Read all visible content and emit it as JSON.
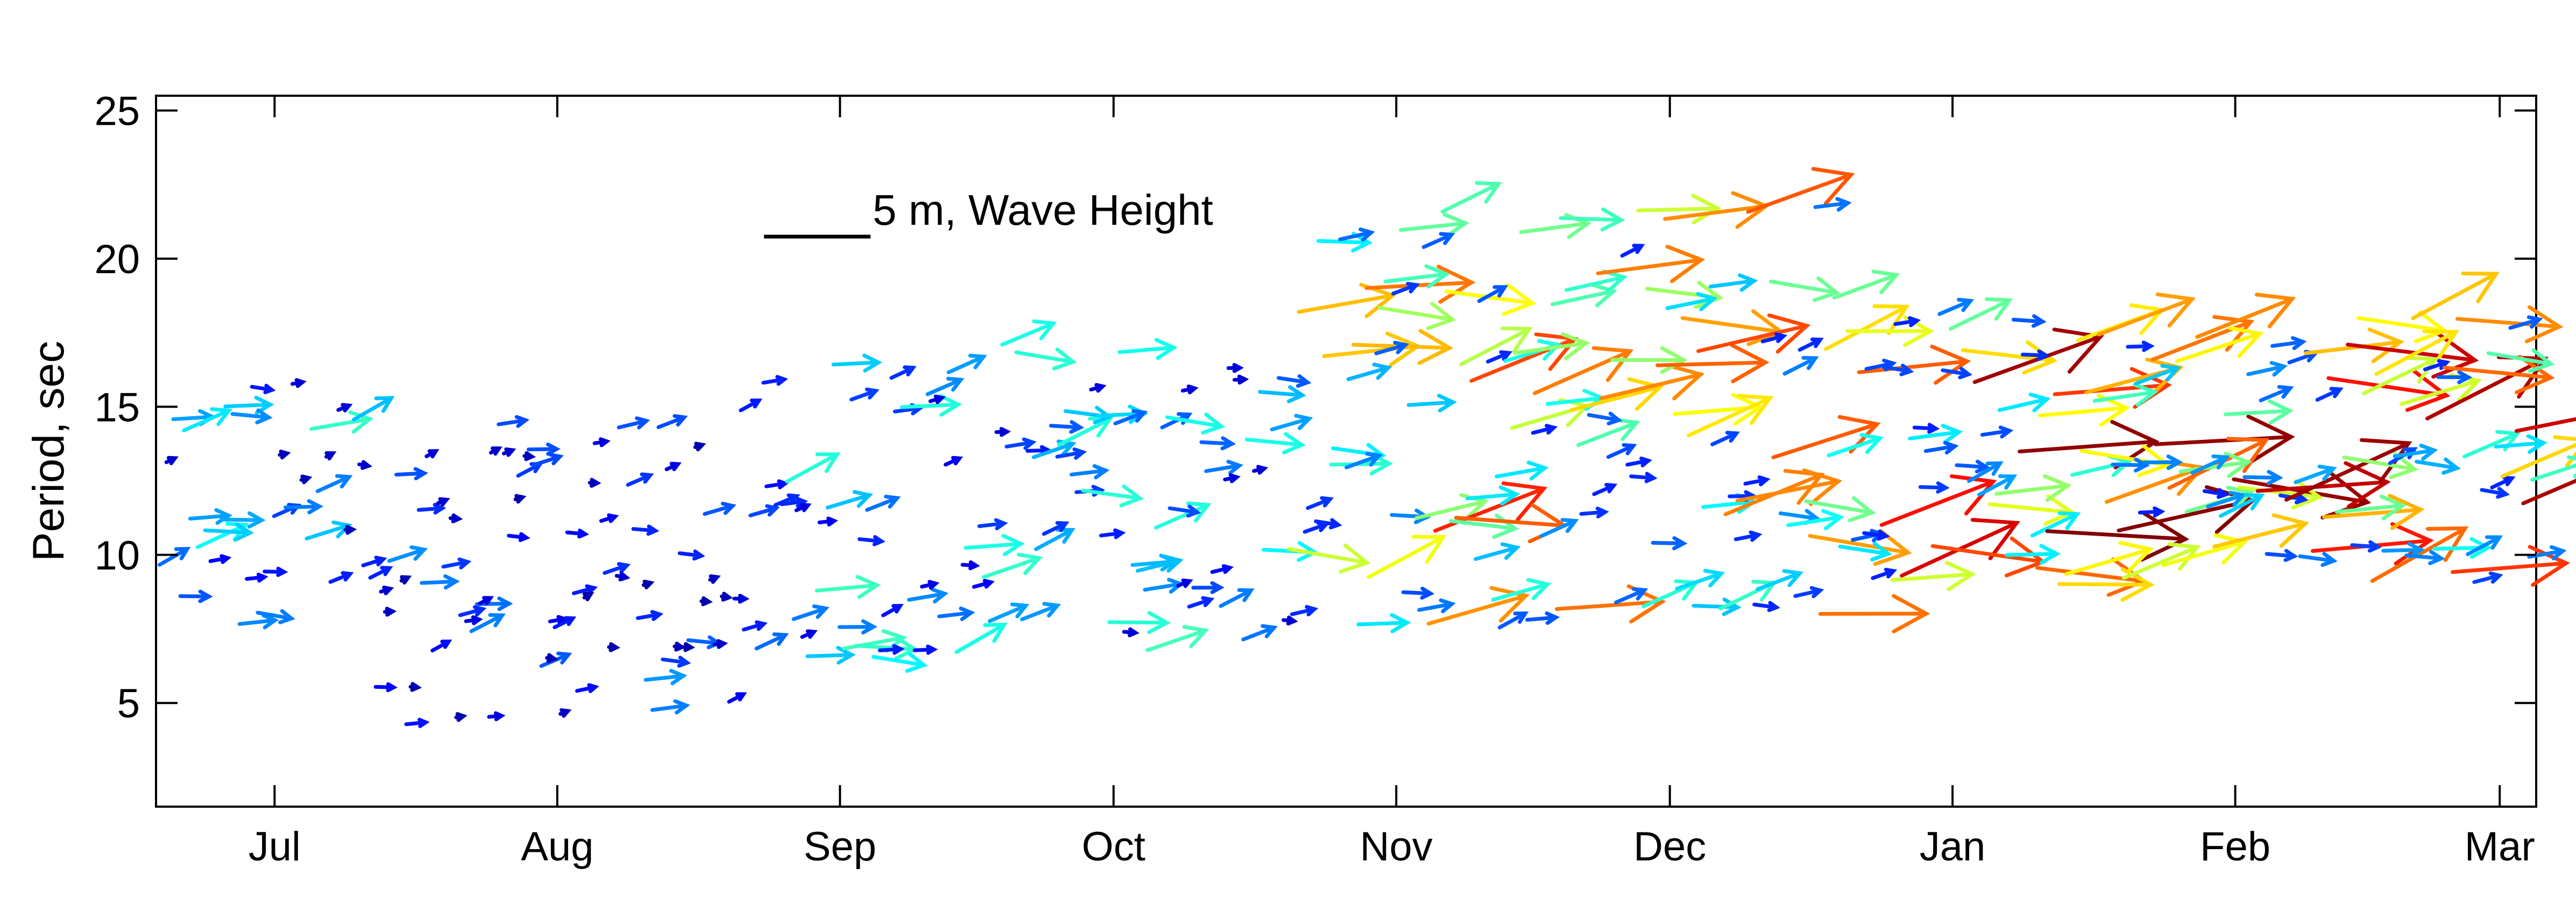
{
  "chart_data": {
    "type": "quiver",
    "xlabel": "",
    "ylabel": "Period, sec",
    "ylim": [
      1.5,
      25.5
    ],
    "yticks": [
      5,
      10,
      15,
      20,
      25
    ],
    "ytick_labels": [
      "5",
      "10",
      "15",
      "20",
      "25"
    ],
    "xlim": [
      "2011-06-18",
      "2012-03-05"
    ],
    "xticks": [
      "2011-07-01",
      "2011-08-01",
      "2011-09-01",
      "2011-10-01",
      "2011-11-01",
      "2011-12-01",
      "2012-01-01",
      "2012-02-01",
      "2012-03-01"
    ],
    "xtick_labels": [
      "Jul",
      "Aug",
      "Sep",
      "Oct",
      "Nov",
      "Dec",
      "Jan",
      "Feb",
      "Mar"
    ],
    "grid": false,
    "legend": {
      "label": "5 m, Wave Height",
      "reference_height_m": 5,
      "placement": "top-left-center"
    },
    "colormap": [
      "#00008f",
      "#0000ff",
      "#0080ff",
      "#00ffff",
      "#80ff80",
      "#ffff00",
      "#ff8000",
      "#ff0000",
      "#800000"
    ],
    "vector_fields": [
      {
        "name": "",
        "start": "2011-06-18",
        "end": "2011-07-10",
        "count": 30,
        "period_min": 6.8,
        "period_max": 16.2,
        "height_min_m": 0.3,
        "height_max_m": 2.8
      },
      {
        "name": "",
        "start": "2011-07-10",
        "end": "2011-08-20",
        "count": 70,
        "period_min": 4.2,
        "period_max": 14.5,
        "height_min_m": 0.2,
        "height_max_m": 1.8
      },
      {
        "name": "",
        "start": "2011-08-20",
        "end": "2011-10-20",
        "count": 95,
        "period_min": 6.5,
        "period_max": 17.2,
        "height_min_m": 0.5,
        "height_max_m": 3.0
      },
      {
        "name": "",
        "start": "2011-10-20",
        "end": "2011-12-20",
        "count": 110,
        "period_min": 7.0,
        "period_max": 22.2,
        "height_min_m": 1.0,
        "height_max_m": 5.5
      },
      {
        "name": "",
        "start": "2011-12-20",
        "end": "2012-03-05",
        "count": 120,
        "period_min": 9.0,
        "period_max": 18.3,
        "height_min_m": 1.0,
        "height_max_m": 6.5
      }
    ]
  }
}
